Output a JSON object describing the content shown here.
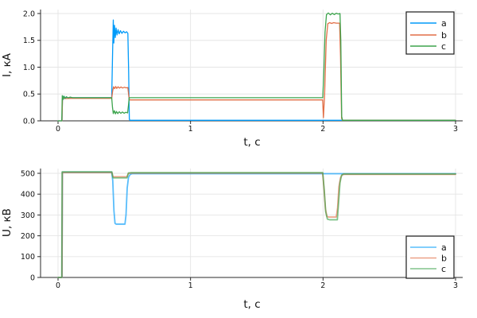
{
  "figure": {
    "background": "#ffffff"
  },
  "chart_data": [
    {
      "type": "line",
      "title": "",
      "xlabel": "t, с",
      "ylabel": "I, кА",
      "xlim": [
        0,
        3
      ],
      "ylim": [
        0,
        2
      ],
      "grid": true,
      "legend_position": "top-right",
      "xticks": [
        0,
        1,
        2,
        3
      ],
      "xtick_labels": [
        "0",
        "1",
        "2",
        "3"
      ],
      "yticks": [
        0.0,
        0.5,
        1.0,
        1.5,
        2.0
      ],
      "ytick_labels": [
        "0.0",
        "0.5",
        "1.0",
        "1.5",
        "2.0"
      ],
      "series": [
        {
          "name": "a",
          "color": "#009af9",
          "opacity": 1,
          "points": [
            [
              0,
              0
            ],
            [
              0.03,
              0
            ],
            [
              0.034,
              0.46
            ],
            [
              0.04,
              0.4
            ],
            [
              0.046,
              0.455
            ],
            [
              0.055,
              0.415
            ],
            [
              0.066,
              0.44
            ],
            [
              0.08,
              0.425
            ],
            [
              0.1,
              0.432
            ],
            [
              0.405,
              0.432
            ],
            [
              0.412,
              1.3
            ],
            [
              0.417,
              1.88
            ],
            [
              0.421,
              1.45
            ],
            [
              0.426,
              1.78
            ],
            [
              0.432,
              1.55
            ],
            [
              0.438,
              1.73
            ],
            [
              0.445,
              1.6
            ],
            [
              0.453,
              1.7
            ],
            [
              0.461,
              1.62
            ],
            [
              0.471,
              1.68
            ],
            [
              0.482,
              1.63
            ],
            [
              0.494,
              1.67
            ],
            [
              0.506,
              1.64
            ],
            [
              0.518,
              1.66
            ],
            [
              0.527,
              1.63
            ],
            [
              0.533,
              0.9
            ],
            [
              0.538,
              0.04
            ],
            [
              0.541,
              0.01
            ],
            [
              3,
              0.01
            ]
          ]
        },
        {
          "name": "b",
          "color": "#e26f46",
          "opacity": 1,
          "points": [
            [
              0,
              0
            ],
            [
              0.03,
              0
            ],
            [
              0.034,
              0.44
            ],
            [
              0.05,
              0.415
            ],
            [
              0.1,
              0.418
            ],
            [
              0.405,
              0.418
            ],
            [
              0.412,
              0.55
            ],
            [
              0.419,
              0.635
            ],
            [
              0.427,
              0.6
            ],
            [
              0.435,
              0.64
            ],
            [
              0.443,
              0.605
            ],
            [
              0.453,
              0.635
            ],
            [
              0.463,
              0.61
            ],
            [
              0.475,
              0.63
            ],
            [
              0.487,
              0.612
            ],
            [
              0.5,
              0.625
            ],
            [
              0.515,
              0.615
            ],
            [
              0.527,
              0.62
            ],
            [
              0.534,
              0.46
            ],
            [
              0.539,
              0.39
            ],
            [
              1.997,
              0.39
            ],
            [
              2.003,
              0.06
            ],
            [
              2.012,
              0.5
            ],
            [
              2.024,
              1.5
            ],
            [
              2.036,
              1.81
            ],
            [
              2.05,
              1.83
            ],
            [
              2.065,
              1.815
            ],
            [
              2.08,
              1.83
            ],
            [
              2.1,
              1.82
            ],
            [
              2.125,
              1.82
            ],
            [
              2.132,
              1.2
            ],
            [
              2.14,
              0.05
            ],
            [
              2.146,
              0.01
            ],
            [
              3,
              0.01
            ]
          ]
        },
        {
          "name": "c",
          "color": "#3da44d",
          "opacity": 1,
          "points": [
            [
              0,
              0
            ],
            [
              0.028,
              0
            ],
            [
              0.032,
              0.47
            ],
            [
              0.038,
              0.4
            ],
            [
              0.044,
              0.46
            ],
            [
              0.052,
              0.42
            ],
            [
              0.063,
              0.45
            ],
            [
              0.076,
              0.428
            ],
            [
              0.092,
              0.442
            ],
            [
              0.11,
              0.432
            ],
            [
              0.405,
              0.432
            ],
            [
              0.411,
              0.25
            ],
            [
              0.417,
              0.135
            ],
            [
              0.425,
              0.19
            ],
            [
              0.433,
              0.13
            ],
            [
              0.441,
              0.175
            ],
            [
              0.451,
              0.135
            ],
            [
              0.462,
              0.17
            ],
            [
              0.474,
              0.14
            ],
            [
              0.486,
              0.165
            ],
            [
              0.499,
              0.142
            ],
            [
              0.512,
              0.16
            ],
            [
              0.525,
              0.148
            ],
            [
              0.532,
              0.3
            ],
            [
              0.537,
              0.432
            ],
            [
              1.998,
              0.432
            ],
            [
              2.006,
              0.9
            ],
            [
              2.015,
              1.65
            ],
            [
              2.026,
              1.98
            ],
            [
              2.04,
              2.01
            ],
            [
              2.055,
              1.975
            ],
            [
              2.07,
              2.005
            ],
            [
              2.085,
              1.98
            ],
            [
              2.1,
              2.005
            ],
            [
              2.115,
              1.99
            ],
            [
              2.128,
              2.0
            ],
            [
              2.134,
              1.5
            ],
            [
              2.141,
              0.08
            ],
            [
              2.147,
              0.01
            ],
            [
              3,
              0.01
            ]
          ]
        }
      ]
    },
    {
      "type": "line",
      "title": "",
      "xlabel": "t, с",
      "ylabel": "U, кВ",
      "xlim": [
        0,
        3
      ],
      "ylim": [
        0,
        500
      ],
      "grid": true,
      "legend_position": "bottom-right",
      "xticks": [
        0,
        1,
        2,
        3
      ],
      "xtick_labels": [
        "0",
        "1",
        "2",
        "3"
      ],
      "yticks": [
        0,
        100,
        200,
        300,
        400,
        500
      ],
      "ytick_labels": [
        "0",
        "100",
        "200",
        "300",
        "400",
        "500"
      ],
      "series": [
        {
          "name": "a",
          "color": "#009af9",
          "opacity": 0.65,
          "points": [
            [
              0,
              0
            ],
            [
              0.03,
              0
            ],
            [
              0.033,
              505
            ],
            [
              0.405,
              505
            ],
            [
              0.413,
              465
            ],
            [
              0.422,
              320
            ],
            [
              0.43,
              260
            ],
            [
              0.438,
              256
            ],
            [
              0.505,
              256
            ],
            [
              0.513,
              300
            ],
            [
              0.522,
              430
            ],
            [
              0.532,
              481
            ],
            [
              0.545,
              495
            ],
            [
              0.56,
              498
            ],
            [
              3,
              498
            ]
          ]
        },
        {
          "name": "b",
          "color": "#e26f46",
          "opacity": 0.65,
          "points": [
            [
              0,
              0
            ],
            [
              0.03,
              0
            ],
            [
              0.033,
              504
            ],
            [
              0.406,
              504
            ],
            [
              0.415,
              483
            ],
            [
              0.52,
              483
            ],
            [
              0.531,
              499
            ],
            [
              0.55,
              501
            ],
            [
              1.997,
              501
            ],
            [
              2.007,
              430
            ],
            [
              2.018,
              330
            ],
            [
              2.03,
              292
            ],
            [
              2.045,
              290
            ],
            [
              2.1,
              290
            ],
            [
              2.11,
              335
            ],
            [
              2.12,
              435
            ],
            [
              2.132,
              479
            ],
            [
              2.145,
              493
            ],
            [
              2.16,
              495
            ],
            [
              3,
              495
            ]
          ]
        },
        {
          "name": "c",
          "color": "#3da44d",
          "opacity": 0.65,
          "points": [
            [
              0,
              0
            ],
            [
              0.028,
              0
            ],
            [
              0.031,
              507
            ],
            [
              0.406,
              507
            ],
            [
              0.415,
              478
            ],
            [
              0.52,
              478
            ],
            [
              0.531,
              502
            ],
            [
              0.55,
              503
            ],
            [
              1.998,
              503
            ],
            [
              2.009,
              420
            ],
            [
              2.02,
              315
            ],
            [
              2.033,
              280
            ],
            [
              2.05,
              277
            ],
            [
              2.108,
              277
            ],
            [
              2.118,
              365
            ],
            [
              2.128,
              455
            ],
            [
              2.14,
              491
            ],
            [
              2.155,
              497
            ],
            [
              3,
              497
            ]
          ]
        }
      ]
    }
  ]
}
